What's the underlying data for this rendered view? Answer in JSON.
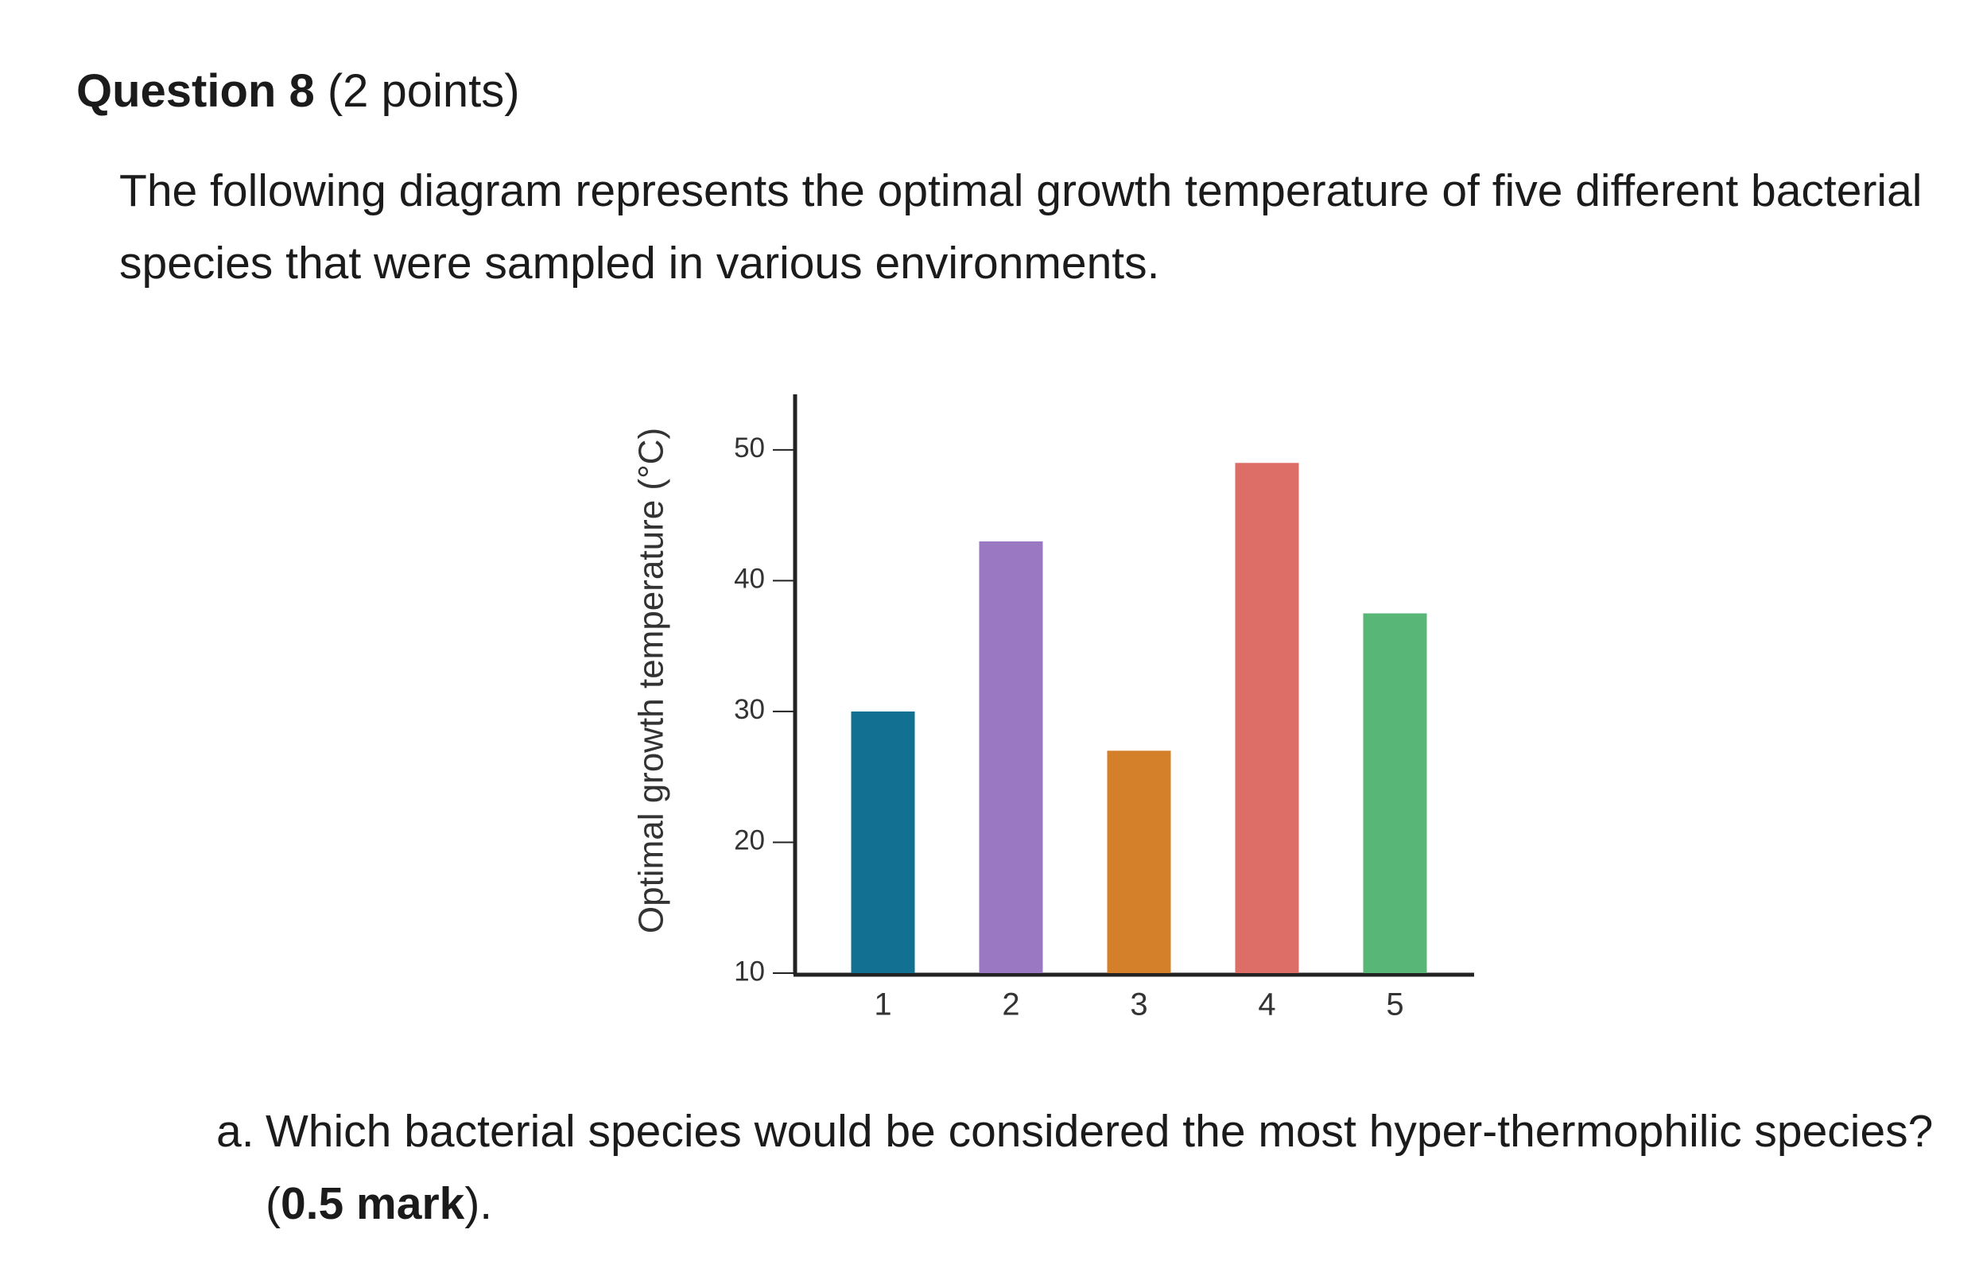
{
  "question": {
    "title": "Question 8",
    "points": "(2 points)",
    "prompt": "The following diagram represents the optimal growth temperature of five different bacterial species that were sampled in various environments."
  },
  "chart_data": {
    "type": "bar",
    "y_label": "Optimal growth temperature (°C)",
    "categories": [
      "1",
      "2",
      "3",
      "4",
      "5"
    ],
    "values": [
      30,
      43,
      27,
      49,
      37.5
    ],
    "colors": [
      "#127092",
      "#9b78c2",
      "#d47f2a",
      "#dc6d67",
      "#58b677"
    ],
    "ylim": [
      10,
      54
    ],
    "yticks": [
      10,
      20,
      30,
      40,
      50
    ]
  },
  "sub_question": {
    "label": "a.",
    "text": "Which bacterial species would be considered the most hyper-thermophilic species? (",
    "emphasis": "0.5 mark",
    "end": ")."
  }
}
